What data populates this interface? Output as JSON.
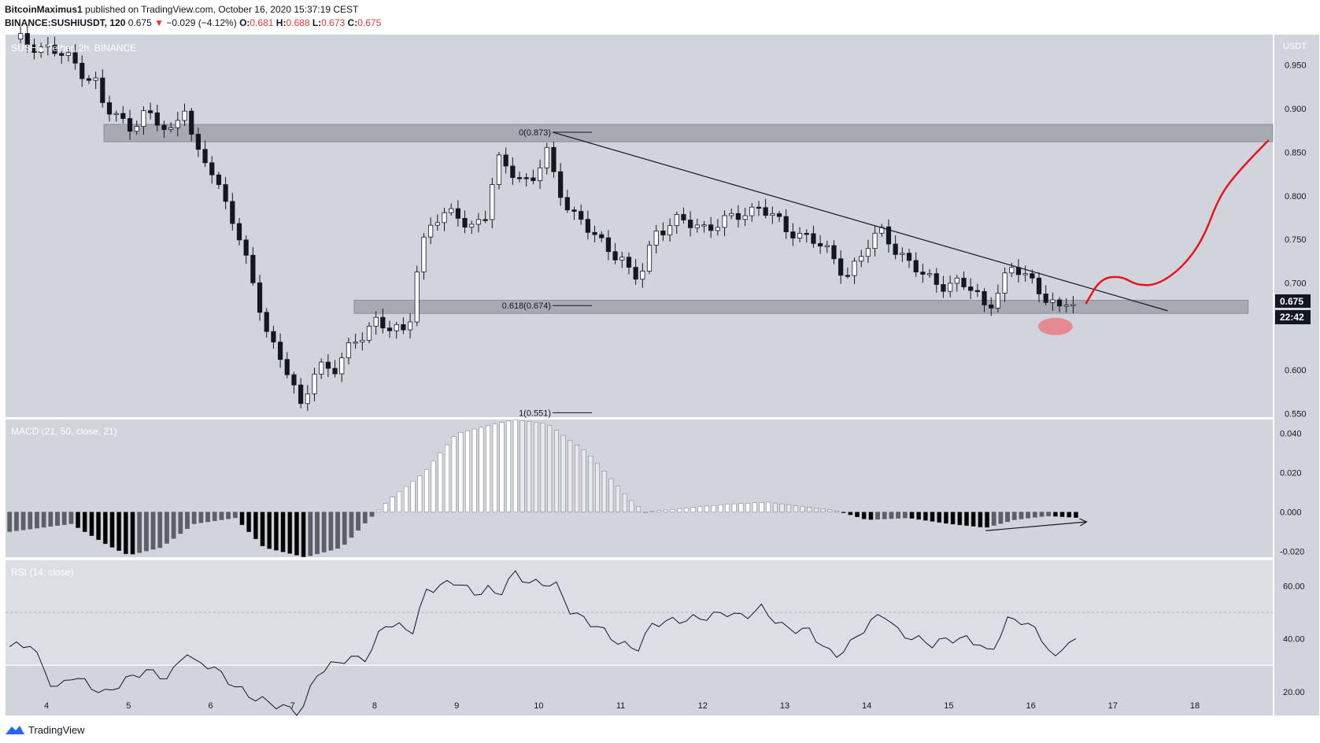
{
  "header": {
    "author": "BitcoinMaximus1",
    "published_text": "published on TradingView.com, October 16, 2020 15:37:19 CEST",
    "symbol": "BINANCE:SUSHIUSDT, 120",
    "last": "0.675",
    "change_arrow": "▼",
    "change": "−0.029 (−4.12%)",
    "o_label": "O:",
    "o": "0.681",
    "h_label": "H:",
    "h": "0.688",
    "l_label": "L:",
    "l": "0.673",
    "c_label": "C:",
    "c": "0.675"
  },
  "pane_labels": {
    "main": "SUSHI / Tether, 2h, BINANCE",
    "macd": "MACD (21, 50, close, 21)",
    "rsi": "RSI (14, close)"
  },
  "currency": "USDT",
  "price_badge": "0.675",
  "countdown_badge": "22:42",
  "footer_brand": "TradingView",
  "colors": {
    "background": "#d1d4dc",
    "bull_candle": "#ffffff",
    "bear_candle": "#131722",
    "zone": "#9a9ca3",
    "projection": "#e8141a",
    "highlight_ellipse": "#ea7b83",
    "macd_up_strong": "#ffffff",
    "macd_up_weak": "#e9e9ec",
    "macd_down_strong": "#000000",
    "macd_down_weak": "#5d5f66"
  },
  "chart_data": [
    {
      "type": "candlestick",
      "title": "SUSHI / Tether, 2h, BINANCE",
      "y_axis_label": "USDT",
      "ylim": [
        0.545,
        0.985
      ],
      "y_ticks": [
        0.95,
        0.9,
        0.85,
        0.8,
        0.75,
        0.7,
        0.6,
        0.55
      ],
      "x_ticks": [
        "4",
        "5",
        "6",
        "7",
        "8",
        "9",
        "10",
        "11",
        "12",
        "13",
        "14",
        "15",
        "16",
        "17",
        "18"
      ],
      "x_range_days": [
        3.5,
        18.95
      ],
      "close_series": {
        "x_day": [
          3.6,
          4.0,
          4.3,
          4.6,
          4.7,
          5.0,
          5.2,
          5.5,
          5.7,
          5.8,
          6.0,
          6.3,
          6.5,
          6.7,
          6.9,
          7.1,
          7.15,
          7.3,
          7.5,
          7.8,
          8.0,
          8.2,
          8.4,
          8.55,
          8.7,
          9.0,
          9.2,
          9.35,
          9.5,
          9.7,
          9.9,
          10.1,
          10.2,
          10.4,
          10.6,
          10.8,
          11.0,
          11.15,
          11.3,
          11.4,
          11.7,
          12.0,
          12.3,
          12.5,
          12.7,
          13.0,
          13.3,
          13.6,
          13.75,
          14.0,
          14.2,
          14.35,
          14.5,
          14.7,
          14.9,
          15.1,
          15.3,
          15.45,
          15.55,
          15.75,
          15.9,
          16.05,
          16.3,
          16.38,
          16.45,
          16.55
        ],
        "close": [
          0.98,
          0.97,
          0.955,
          0.93,
          0.9,
          0.88,
          0.895,
          0.87,
          0.91,
          0.85,
          0.83,
          0.77,
          0.7,
          0.64,
          0.61,
          0.553,
          0.565,
          0.61,
          0.6,
          0.635,
          0.66,
          0.645,
          0.64,
          0.74,
          0.77,
          0.78,
          0.765,
          0.775,
          0.84,
          0.83,
          0.81,
          0.85,
          0.82,
          0.78,
          0.76,
          0.745,
          0.73,
          0.7,
          0.72,
          0.76,
          0.77,
          0.765,
          0.77,
          0.78,
          0.79,
          0.76,
          0.755,
          0.725,
          0.71,
          0.74,
          0.76,
          0.74,
          0.725,
          0.705,
          0.7,
          0.7,
          0.69,
          0.672,
          0.685,
          0.715,
          0.71,
          0.7,
          0.672,
          0.663,
          0.68,
          0.675
        ]
      },
      "current_price": 0.675,
      "resistance_zones": [
        {
          "low": 0.862,
          "high": 0.882,
          "from_day": 4.7,
          "to_day": 18.95
        },
        {
          "low": 0.665,
          "high": 0.68,
          "from_day": 7.75,
          "to_day": 18.65
        }
      ],
      "fibonacci": [
        {
          "label": "0(0.873)",
          "level": 0.873
        },
        {
          "label": "0.618(0.674)",
          "level": 0.674
        },
        {
          "label": "1(0.551)",
          "level": 0.551
        }
      ],
      "descending_trendline": {
        "from": [
          10.17,
          0.873
        ],
        "to": [
          17.67,
          0.668
        ]
      },
      "projection_path": [
        [
          16.67,
          0.676
        ],
        [
          16.85,
          0.705
        ],
        [
          17.1,
          0.708
        ],
        [
          17.3,
          0.697
        ],
        [
          17.55,
          0.698
        ],
        [
          17.85,
          0.718
        ],
        [
          18.1,
          0.75
        ],
        [
          18.3,
          0.8
        ],
        [
          18.55,
          0.83
        ],
        [
          18.9,
          0.864
        ]
      ],
      "highlight_ellipse_at": {
        "x_day": 16.3,
        "y": 0.65
      }
    },
    {
      "type": "bar",
      "title": "MACD (21, 50, close, 21)",
      "ylim": [
        -0.023,
        0.047
      ],
      "y_ticks": [
        0.04,
        0.02,
        0.0,
        -0.02
      ],
      "histogram": {
        "x_day": [
          3.55,
          4.3,
          4.75,
          5.0,
          5.4,
          5.8,
          6.3,
          6.65,
          7.15,
          7.6,
          7.9,
          8.2,
          8.6,
          9.0,
          9.4,
          9.7,
          10.1,
          10.6,
          11.1,
          11.3,
          11.8,
          12.3,
          12.8,
          13.2,
          13.6,
          14.0,
          14.5,
          15.0,
          15.45,
          15.8,
          16.2,
          16.6
        ],
        "value": [
          -0.01,
          -0.006,
          -0.017,
          -0.022,
          -0.018,
          -0.006,
          -0.003,
          -0.018,
          -0.023,
          -0.018,
          -0.005,
          0.007,
          0.02,
          0.04,
          0.044,
          0.047,
          0.045,
          0.03,
          0.007,
          0.0,
          0.002,
          0.004,
          0.005,
          0.003,
          0.001,
          -0.004,
          -0.003,
          -0.006,
          -0.008,
          -0.004,
          -0.002,
          -0.003
        ]
      },
      "annotation_arrow": {
        "from": [
          15.45,
          -0.0095
        ],
        "to": [
          16.68,
          -0.005
        ]
      }
    },
    {
      "type": "line",
      "title": "RSI (14, close)",
      "ylim": [
        11,
        70
      ],
      "y_ticks": [
        60.0,
        40.0,
        20.0
      ],
      "bands": [
        30,
        70
      ],
      "x_day": [
        3.55,
        3.8,
        4.0,
        4.1,
        4.3,
        4.5,
        4.7,
        5.0,
        5.2,
        5.5,
        5.7,
        5.8,
        6.0,
        6.3,
        6.5,
        6.7,
        7.0,
        7.1,
        7.3,
        7.6,
        7.9,
        8.0,
        8.1,
        8.5,
        8.6,
        9.0,
        9.2,
        9.4,
        9.5,
        9.7,
        9.9,
        10.2,
        10.4,
        10.7,
        11.0,
        11.2,
        11.4,
        11.7,
        12.0,
        12.3,
        12.5,
        12.7,
        13.0,
        13.3,
        13.6,
        13.8,
        14.0,
        14.2,
        14.4,
        14.6,
        14.8,
        15.0,
        15.2,
        15.4,
        15.5,
        15.7,
        15.9,
        16.1,
        16.3,
        16.45,
        16.6
      ],
      "rsi": [
        37,
        38,
        27,
        20,
        26,
        23,
        19,
        25,
        28,
        25,
        36,
        31,
        30,
        22,
        18,
        16,
        13,
        12,
        27,
        32,
        33,
        37,
        46,
        43,
        58,
        62,
        57,
        59,
        56,
        65,
        61,
        61,
        50,
        45,
        38,
        36,
        46,
        47,
        48,
        50,
        48,
        52,
        44,
        43,
        33,
        38,
        45,
        50,
        42,
        40,
        38,
        40,
        40,
        38,
        33,
        47,
        47,
        42,
        32,
        40,
        38
      ]
    }
  ]
}
